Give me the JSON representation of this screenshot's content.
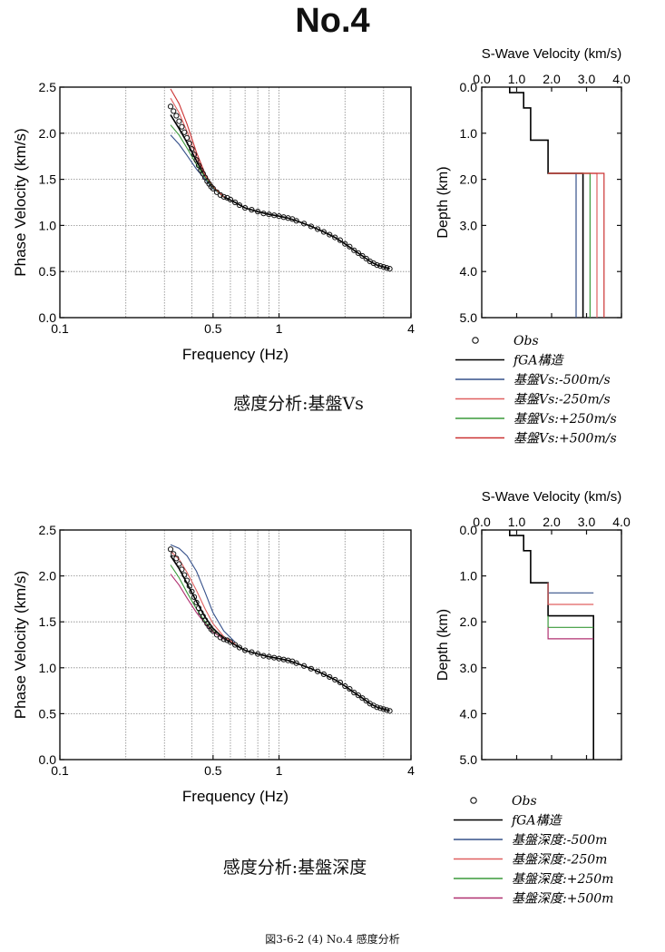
{
  "page": {
    "title": "No.4",
    "caption": "図3-6-2 (4) No.4  感度分析"
  },
  "chart_data": [
    {
      "panel": "top-left",
      "type": "line",
      "subtitle": "感度分析:基盤Vs",
      "xlabel": "Frequency (Hz)",
      "ylabel": "Phase Velocity (km/s)",
      "xscale": "log",
      "xlim": [
        0.1,
        4
      ],
      "ylim": [
        0,
        2.5
      ],
      "xticks": [
        "0.1",
        "0.5",
        "1",
        "4"
      ],
      "yticks": [
        "0.0",
        "0.5",
        "1.0",
        "1.5",
        "2.0",
        "2.5"
      ],
      "grid": true,
      "observed": {
        "name": "Obs",
        "x": [
          0.32,
          0.33,
          0.34,
          0.35,
          0.36,
          0.37,
          0.38,
          0.39,
          0.4,
          0.41,
          0.42,
          0.43,
          0.44,
          0.45,
          0.46,
          0.47,
          0.48,
          0.49,
          0.5,
          0.52,
          0.54,
          0.56,
          0.58,
          0.6,
          0.63,
          0.66,
          0.7,
          0.75,
          0.8,
          0.85,
          0.9,
          0.95,
          1.0,
          1.05,
          1.1,
          1.15,
          1.2,
          1.3,
          1.4,
          1.5,
          1.6,
          1.7,
          1.8,
          1.9,
          2.0,
          2.1,
          2.2,
          2.3,
          2.4,
          2.5,
          2.6,
          2.7,
          2.8,
          2.9,
          3.0,
          3.1,
          3.2
        ],
        "y": [
          2.29,
          2.24,
          2.19,
          2.13,
          2.07,
          2.01,
          1.95,
          1.89,
          1.83,
          1.77,
          1.71,
          1.65,
          1.6,
          1.56,
          1.52,
          1.48,
          1.45,
          1.42,
          1.4,
          1.36,
          1.33,
          1.31,
          1.3,
          1.28,
          1.25,
          1.22,
          1.19,
          1.17,
          1.15,
          1.13,
          1.12,
          1.11,
          1.1,
          1.09,
          1.08,
          1.07,
          1.05,
          1.02,
          0.99,
          0.96,
          0.93,
          0.9,
          0.87,
          0.84,
          0.8,
          0.77,
          0.73,
          0.7,
          0.67,
          0.64,
          0.61,
          0.59,
          0.57,
          0.56,
          0.55,
          0.54,
          0.53
        ]
      },
      "series": [
        {
          "name": "fGA構造",
          "color": "#000000",
          "x": [
            0.32,
            0.35,
            0.38,
            0.42,
            0.46,
            0.5,
            0.56,
            0.63,
            0.7,
            0.8,
            0.9,
            1.0,
            1.1,
            1.2,
            1.4,
            1.6,
            1.8,
            2.0,
            2.2,
            2.4,
            2.6,
            2.8,
            3.0,
            3.2
          ],
          "y": [
            2.2,
            2.05,
            1.9,
            1.7,
            1.53,
            1.41,
            1.31,
            1.25,
            1.19,
            1.15,
            1.12,
            1.1,
            1.08,
            1.05,
            0.99,
            0.93,
            0.87,
            0.8,
            0.73,
            0.67,
            0.61,
            0.57,
            0.55,
            0.53
          ]
        },
        {
          "name": "基盤Vs:-500m/s",
          "color": "#35508a",
          "x": [
            0.32,
            0.35,
            0.38,
            0.42,
            0.46,
            0.5,
            0.56
          ],
          "y": [
            1.98,
            1.88,
            1.76,
            1.61,
            1.5,
            1.4,
            1.31
          ]
        },
        {
          "name": "基盤Vs:-250m/s",
          "color": "#e06060",
          "x": [
            0.32,
            0.35,
            0.38,
            0.42,
            0.46,
            0.5,
            0.56
          ],
          "y": [
            2.38,
            2.22,
            2.02,
            1.74,
            1.54,
            1.41,
            1.31
          ]
        },
        {
          "name": "基盤Vs:+250m/s",
          "color": "#3a9a3a",
          "x": [
            0.32,
            0.35,
            0.38,
            0.42,
            0.46,
            0.5,
            0.56
          ],
          "y": [
            2.09,
            1.98,
            1.84,
            1.66,
            1.52,
            1.41,
            1.31
          ]
        },
        {
          "name": "基盤Vs:+500m/s",
          "color": "#cc3333",
          "x": [
            0.32,
            0.35,
            0.38,
            0.42,
            0.46,
            0.5,
            0.56
          ],
          "y": [
            2.48,
            2.32,
            2.1,
            1.79,
            1.56,
            1.42,
            1.31
          ]
        }
      ]
    },
    {
      "panel": "top-right",
      "type": "line",
      "title": "S-Wave Velocity (km/s)",
      "ylabel": "Depth (km)",
      "xlim": [
        0,
        4
      ],
      "ylim": [
        0,
        5
      ],
      "xticks": [
        "0.0",
        "1.0",
        "2.0",
        "3.0",
        "4.0"
      ],
      "yticks": [
        "0.0",
        "1.0",
        "2.0",
        "3.0",
        "4.0",
        "5.0"
      ],
      "series": [
        {
          "name": "fGA構造",
          "color": "#000000",
          "x": [
            0.8,
            0.8,
            1.2,
            1.2,
            1.4,
            1.4,
            1.9,
            1.9,
            2.9,
            2.9
          ],
          "y": [
            0,
            0.12,
            0.12,
            0.45,
            0.45,
            1.15,
            1.15,
            1.87,
            1.87,
            5.0
          ]
        },
        {
          "name": "基盤Vs:-500m/s",
          "color": "#35508a",
          "x": [
            1.9,
            2.7,
            2.7
          ],
          "y": [
            1.87,
            1.87,
            5.0
          ]
        },
        {
          "name": "基盤Vs:-250m/s",
          "color": "#e06060",
          "x": [
            1.9,
            3.3,
            3.3
          ],
          "y": [
            1.87,
            1.87,
            5.0
          ]
        },
        {
          "name": "基盤Vs:+250m/s",
          "color": "#3a9a3a",
          "x": [
            1.9,
            3.1,
            3.1
          ],
          "y": [
            1.87,
            1.87,
            5.0
          ]
        },
        {
          "name": "基盤Vs:+500m/s",
          "color": "#cc3333",
          "x": [
            1.9,
            3.5,
            3.5
          ],
          "y": [
            1.87,
            1.87,
            5.0
          ]
        }
      ]
    },
    {
      "panel": "bottom-left",
      "type": "line",
      "subtitle": "感度分析:基盤深度",
      "xlabel": "Frequency (Hz)",
      "ylabel": "Phase Velocity (km/s)",
      "xscale": "log",
      "xlim": [
        0.1,
        4
      ],
      "ylim": [
        0,
        2.5
      ],
      "xticks": [
        "0.1",
        "0.5",
        "1",
        "4"
      ],
      "yticks": [
        "0.0",
        "0.5",
        "1.0",
        "1.5",
        "2.0",
        "2.5"
      ],
      "grid": true,
      "observed": {
        "name": "Obs",
        "x": [
          0.32,
          0.33,
          0.34,
          0.35,
          0.36,
          0.37,
          0.38,
          0.39,
          0.4,
          0.41,
          0.42,
          0.43,
          0.44,
          0.45,
          0.46,
          0.47,
          0.48,
          0.49,
          0.5,
          0.52,
          0.54,
          0.56,
          0.58,
          0.6,
          0.63,
          0.66,
          0.7,
          0.75,
          0.8,
          0.85,
          0.9,
          0.95,
          1.0,
          1.05,
          1.1,
          1.15,
          1.2,
          1.3,
          1.4,
          1.5,
          1.6,
          1.7,
          1.8,
          1.9,
          2.0,
          2.1,
          2.2,
          2.3,
          2.4,
          2.5,
          2.6,
          2.7,
          2.8,
          2.9,
          3.0,
          3.1,
          3.2
        ],
        "y": [
          2.29,
          2.24,
          2.19,
          2.13,
          2.07,
          2.01,
          1.95,
          1.89,
          1.83,
          1.77,
          1.71,
          1.65,
          1.6,
          1.56,
          1.52,
          1.48,
          1.45,
          1.42,
          1.4,
          1.36,
          1.33,
          1.31,
          1.3,
          1.28,
          1.25,
          1.22,
          1.19,
          1.17,
          1.15,
          1.13,
          1.12,
          1.11,
          1.1,
          1.09,
          1.08,
          1.07,
          1.05,
          1.02,
          0.99,
          0.96,
          0.93,
          0.9,
          0.87,
          0.84,
          0.8,
          0.77,
          0.73,
          0.7,
          0.67,
          0.64,
          0.61,
          0.59,
          0.57,
          0.56,
          0.55,
          0.54,
          0.53
        ]
      },
      "series": [
        {
          "name": "fGA構造",
          "color": "#000000",
          "x": [
            0.32,
            0.35,
            0.38,
            0.42,
            0.46,
            0.5,
            0.56,
            0.63,
            0.7,
            0.8,
            0.9,
            1.0,
            1.1,
            1.2,
            1.4,
            1.6,
            1.8,
            2.0,
            2.2,
            2.4,
            2.6,
            2.8,
            3.0,
            3.2
          ],
          "y": [
            2.22,
            2.08,
            1.92,
            1.72,
            1.55,
            1.43,
            1.32,
            1.25,
            1.19,
            1.15,
            1.12,
            1.1,
            1.08,
            1.05,
            0.99,
            0.93,
            0.87,
            0.8,
            0.73,
            0.67,
            0.61,
            0.57,
            0.55,
            0.53
          ]
        },
        {
          "name": "基盤深度:-500m",
          "color": "#35508a",
          "x": [
            0.32,
            0.35,
            0.38,
            0.42,
            0.46,
            0.5,
            0.56,
            0.63
          ],
          "y": [
            2.34,
            2.3,
            2.22,
            2.05,
            1.82,
            1.6,
            1.4,
            1.28
          ]
        },
        {
          "name": "基盤深度:-250m",
          "color": "#e06060",
          "x": [
            0.32,
            0.35,
            0.38,
            0.42,
            0.46,
            0.5,
            0.56,
            0.63
          ],
          "y": [
            2.27,
            2.18,
            2.04,
            1.84,
            1.64,
            1.48,
            1.34,
            1.26
          ]
        },
        {
          "name": "基盤深度:+250m",
          "color": "#3a9a3a",
          "x": [
            0.32,
            0.35,
            0.38,
            0.42,
            0.46,
            0.5,
            0.56
          ],
          "y": [
            2.12,
            1.98,
            1.82,
            1.64,
            1.5,
            1.4,
            1.31
          ]
        },
        {
          "name": "基盤深度:+500m",
          "color": "#b03070",
          "x": [
            0.32,
            0.35,
            0.38,
            0.42,
            0.46,
            0.5,
            0.56
          ],
          "y": [
            2.02,
            1.9,
            1.76,
            1.6,
            1.48,
            1.39,
            1.31
          ]
        }
      ]
    },
    {
      "panel": "bottom-right",
      "type": "line",
      "title": "S-Wave Velocity (km/s)",
      "ylabel": "Depth (km)",
      "xlim": [
        0,
        4
      ],
      "ylim": [
        0,
        5
      ],
      "xticks": [
        "0.0",
        "1.0",
        "2.0",
        "3.0",
        "4.0"
      ],
      "yticks": [
        "0.0",
        "1.0",
        "2.0",
        "3.0",
        "4.0",
        "5.0"
      ],
      "series": [
        {
          "name": "fGA構造",
          "color": "#000000",
          "x": [
            0.8,
            0.8,
            1.2,
            1.2,
            1.4,
            1.4,
            1.9,
            1.9,
            3.2,
            3.2
          ],
          "y": [
            0,
            0.12,
            0.12,
            0.45,
            0.45,
            1.15,
            1.15,
            1.87,
            1.87,
            5.0
          ]
        },
        {
          "name": "基盤深度:-500m",
          "color": "#35508a",
          "x": [
            1.9,
            1.9,
            3.2
          ],
          "y": [
            1.15,
            1.37,
            1.37
          ]
        },
        {
          "name": "基盤深度:-250m",
          "color": "#e06060",
          "x": [
            1.9,
            1.9,
            3.2
          ],
          "y": [
            1.15,
            1.62,
            1.62
          ]
        },
        {
          "name": "基盤深度:+250m",
          "color": "#3a9a3a",
          "x": [
            1.9,
            1.9,
            3.2
          ],
          "y": [
            1.87,
            2.12,
            2.12
          ]
        },
        {
          "name": "基盤深度:+500m",
          "color": "#b03070",
          "x": [
            1.9,
            1.9,
            3.2
          ],
          "y": [
            2.12,
            2.37,
            2.37
          ]
        }
      ]
    }
  ],
  "legends": [
    [
      "Obs",
      "fGA構造",
      "基盤Vs:-500m/s",
      "基盤Vs:-250m/s",
      "基盤Vs:+250m/s",
      "基盤Vs:+500m/s"
    ],
    [
      "Obs",
      "fGA構造",
      "基盤深度:-500m",
      "基盤深度:-250m",
      "基盤深度:+250m",
      "基盤深度:+500m"
    ]
  ]
}
